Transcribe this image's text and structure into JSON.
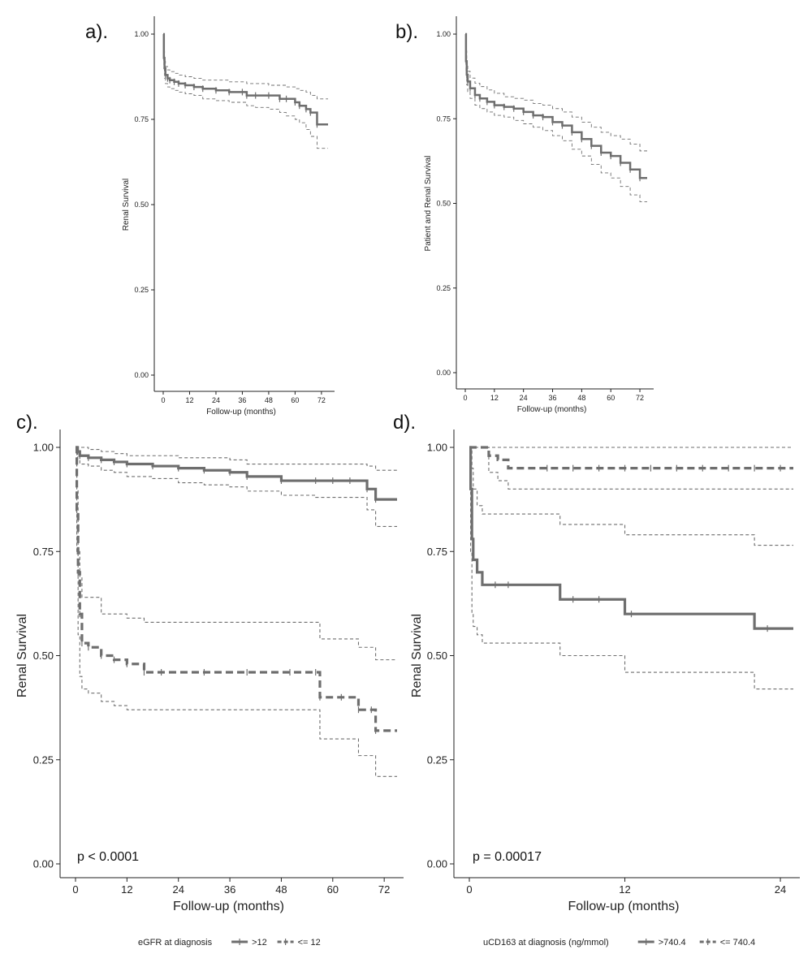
{
  "chart_data": [
    {
      "panel_label": "a).",
      "type": "line",
      "subtype": "kaplan-meier",
      "xlabel": "Follow-up (months)",
      "ylabel": "Renal Survival",
      "xlim": [
        0,
        75
      ],
      "ylim": [
        0,
        1
      ],
      "xticks": [
        "0",
        "12",
        "24",
        "36",
        "48",
        "60",
        "72"
      ],
      "yticks": [
        "0.00",
        "0.25",
        "0.50",
        "0.75",
        "1.00"
      ],
      "grid": false,
      "color": "#6e6e6e",
      "series": [
        {
          "x": [
            0,
            0.3,
            0.6,
            1,
            2,
            3,
            5,
            7,
            10,
            14,
            18,
            24,
            30,
            36,
            38,
            42,
            48,
            53,
            56,
            60,
            62,
            65,
            67,
            70,
            75
          ],
          "y": [
            1.0,
            0.93,
            0.9,
            0.88,
            0.87,
            0.865,
            0.86,
            0.855,
            0.85,
            0.845,
            0.84,
            0.835,
            0.83,
            0.83,
            0.82,
            0.82,
            0.82,
            0.81,
            0.81,
            0.8,
            0.79,
            0.78,
            0.77,
            0.735,
            0.735
          ],
          "lower": [
            1.0,
            0.9,
            0.87,
            0.855,
            0.845,
            0.84,
            0.835,
            0.83,
            0.825,
            0.82,
            0.81,
            0.805,
            0.8,
            0.8,
            0.79,
            0.785,
            0.78,
            0.77,
            0.76,
            0.75,
            0.74,
            0.72,
            0.7,
            0.665,
            0.665
          ],
          "upper": [
            1.0,
            0.95,
            0.92,
            0.905,
            0.895,
            0.89,
            0.885,
            0.88,
            0.875,
            0.87,
            0.865,
            0.865,
            0.86,
            0.86,
            0.855,
            0.855,
            0.85,
            0.85,
            0.845,
            0.84,
            0.835,
            0.83,
            0.82,
            0.81,
            0.81
          ]
        }
      ]
    },
    {
      "panel_label": "b).",
      "type": "line",
      "subtype": "kaplan-meier",
      "xlabel": "Follow-up (months)",
      "ylabel": "Patient and Renal Survival",
      "xlim": [
        0,
        75
      ],
      "ylim": [
        0,
        1
      ],
      "xticks": [
        "0",
        "12",
        "24",
        "36",
        "48",
        "60",
        "72"
      ],
      "yticks": [
        "0.00",
        "0.25",
        "0.50",
        "0.75",
        "1.00"
      ],
      "grid": false,
      "color": "#6e6e6e",
      "series": [
        {
          "x": [
            0,
            0.3,
            0.6,
            1,
            2,
            4,
            6,
            9,
            12,
            16,
            20,
            24,
            28,
            32,
            36,
            40,
            44,
            48,
            52,
            56,
            60,
            64,
            68,
            72,
            75
          ],
          "y": [
            1.0,
            0.92,
            0.88,
            0.86,
            0.84,
            0.82,
            0.81,
            0.8,
            0.79,
            0.785,
            0.78,
            0.77,
            0.76,
            0.755,
            0.74,
            0.73,
            0.71,
            0.69,
            0.67,
            0.65,
            0.64,
            0.62,
            0.6,
            0.575,
            0.575
          ],
          "lower": [
            1.0,
            0.89,
            0.85,
            0.83,
            0.81,
            0.79,
            0.78,
            0.77,
            0.76,
            0.755,
            0.745,
            0.735,
            0.725,
            0.715,
            0.7,
            0.685,
            0.66,
            0.64,
            0.615,
            0.59,
            0.575,
            0.55,
            0.525,
            0.505,
            0.505
          ],
          "upper": [
            1.0,
            0.95,
            0.91,
            0.89,
            0.87,
            0.855,
            0.845,
            0.835,
            0.825,
            0.815,
            0.81,
            0.805,
            0.795,
            0.79,
            0.78,
            0.77,
            0.755,
            0.74,
            0.725,
            0.71,
            0.7,
            0.69,
            0.675,
            0.655,
            0.655
          ]
        }
      ]
    },
    {
      "panel_label": "c).",
      "type": "line",
      "subtype": "kaplan-meier",
      "xlabel": "Follow-up (months)",
      "ylabel": "Renal Survival",
      "xlim": [
        0,
        75
      ],
      "ylim": [
        0,
        1
      ],
      "xticks": [
        "0",
        "12",
        "24",
        "36",
        "48",
        "60",
        "72"
      ],
      "yticks": [
        "0.00",
        "0.25",
        "0.50",
        "0.75",
        "1.00"
      ],
      "grid": false,
      "annotation": "p < 0.0001",
      "legend": {
        "title": "eGFR at diagnosis",
        "position": "bottom"
      },
      "series": [
        {
          "name": ">12",
          "dash": "solid",
          "color": "#6e6e6e",
          "x": [
            0,
            0.5,
            1,
            3,
            6,
            9,
            12,
            18,
            24,
            30,
            36,
            40,
            48,
            56,
            60,
            64,
            68,
            70,
            75
          ],
          "y": [
            1.0,
            0.99,
            0.98,
            0.975,
            0.97,
            0.965,
            0.96,
            0.955,
            0.95,
            0.945,
            0.94,
            0.93,
            0.92,
            0.92,
            0.92,
            0.92,
            0.9,
            0.875,
            0.875
          ],
          "lower": [
            1.0,
            0.97,
            0.96,
            0.955,
            0.945,
            0.94,
            0.93,
            0.925,
            0.915,
            0.91,
            0.905,
            0.895,
            0.885,
            0.88,
            0.88,
            0.88,
            0.85,
            0.81,
            0.81
          ],
          "upper": [
            1.0,
            1.0,
            1.0,
            0.995,
            0.99,
            0.985,
            0.98,
            0.98,
            0.975,
            0.975,
            0.97,
            0.96,
            0.96,
            0.96,
            0.96,
            0.96,
            0.955,
            0.945,
            0.945
          ]
        },
        {
          "name": "<= 12",
          "dash": "dashed",
          "color": "#6e6e6e",
          "x": [
            0,
            0.3,
            0.6,
            1,
            1.5,
            3,
            6,
            9,
            12,
            16,
            20,
            30,
            40,
            50,
            56,
            57,
            62,
            66,
            69,
            70,
            75
          ],
          "y": [
            1.0,
            0.85,
            0.7,
            0.6,
            0.53,
            0.52,
            0.5,
            0.49,
            0.48,
            0.46,
            0.46,
            0.46,
            0.46,
            0.46,
            0.46,
            0.4,
            0.4,
            0.37,
            0.37,
            0.32,
            0.32
          ],
          "lower": [
            1.0,
            0.75,
            0.55,
            0.45,
            0.42,
            0.41,
            0.39,
            0.38,
            0.37,
            0.37,
            0.37,
            0.37,
            0.37,
            0.37,
            0.37,
            0.3,
            0.3,
            0.26,
            0.26,
            0.21,
            0.21
          ],
          "upper": [
            1.0,
            0.9,
            0.75,
            0.69,
            0.64,
            0.64,
            0.6,
            0.6,
            0.59,
            0.58,
            0.58,
            0.58,
            0.58,
            0.58,
            0.58,
            0.54,
            0.54,
            0.52,
            0.52,
            0.49,
            0.49
          ]
        }
      ]
    },
    {
      "panel_label": "d).",
      "type": "line",
      "subtype": "kaplan-meier",
      "xlabel": "Follow-up (months)",
      "ylabel": "Renal Survival",
      "xlim": [
        0,
        25
      ],
      "ylim": [
        0,
        1
      ],
      "xticks": [
        "0",
        "12",
        "24"
      ],
      "yticks": [
        "0.00",
        "0.25",
        "0.50",
        "0.75",
        "1.00"
      ],
      "grid": false,
      "annotation": "p = 0.00017",
      "legend": {
        "title": "uCD163 at diagnosis (ng/mmol)",
        "position": "bottom"
      },
      "series": [
        {
          "name": ">740.4",
          "dash": "solid",
          "color": "#6e6e6e",
          "x": [
            0,
            0.1,
            0.2,
            0.3,
            0.6,
            1,
            3,
            7,
            10,
            12,
            16,
            20,
            22,
            25
          ],
          "y": [
            1.0,
            0.9,
            0.78,
            0.73,
            0.7,
            0.67,
            0.67,
            0.635,
            0.635,
            0.6,
            0.6,
            0.6,
            0.565,
            0.565
          ],
          "lower": [
            1.0,
            0.75,
            0.6,
            0.57,
            0.55,
            0.53,
            0.53,
            0.5,
            0.5,
            0.46,
            0.46,
            0.46,
            0.42,
            0.42
          ],
          "upper": [
            1.0,
            1.0,
            0.95,
            0.9,
            0.86,
            0.84,
            0.84,
            0.815,
            0.815,
            0.79,
            0.79,
            0.79,
            0.765,
            0.765
          ],
          "censor_x": [
            2,
            3,
            8,
            10,
            12.5,
            23
          ]
        },
        {
          "name": "<= 740.4",
          "dash": "dashed",
          "color": "#6e6e6e",
          "x": [
            0,
            0.5,
            1.5,
            2.2,
            3,
            25
          ],
          "y": [
            1.0,
            1.0,
            0.98,
            0.97,
            0.95,
            0.95
          ],
          "lower": [
            1.0,
            1.0,
            0.94,
            0.92,
            0.9,
            0.9
          ],
          "upper": [
            1.0,
            1.0,
            1.0,
            1.0,
            1.0,
            1.0
          ],
          "censor_x": [
            6,
            8,
            10,
            12,
            14,
            16,
            18,
            20,
            22,
            24
          ]
        }
      ]
    }
  ]
}
